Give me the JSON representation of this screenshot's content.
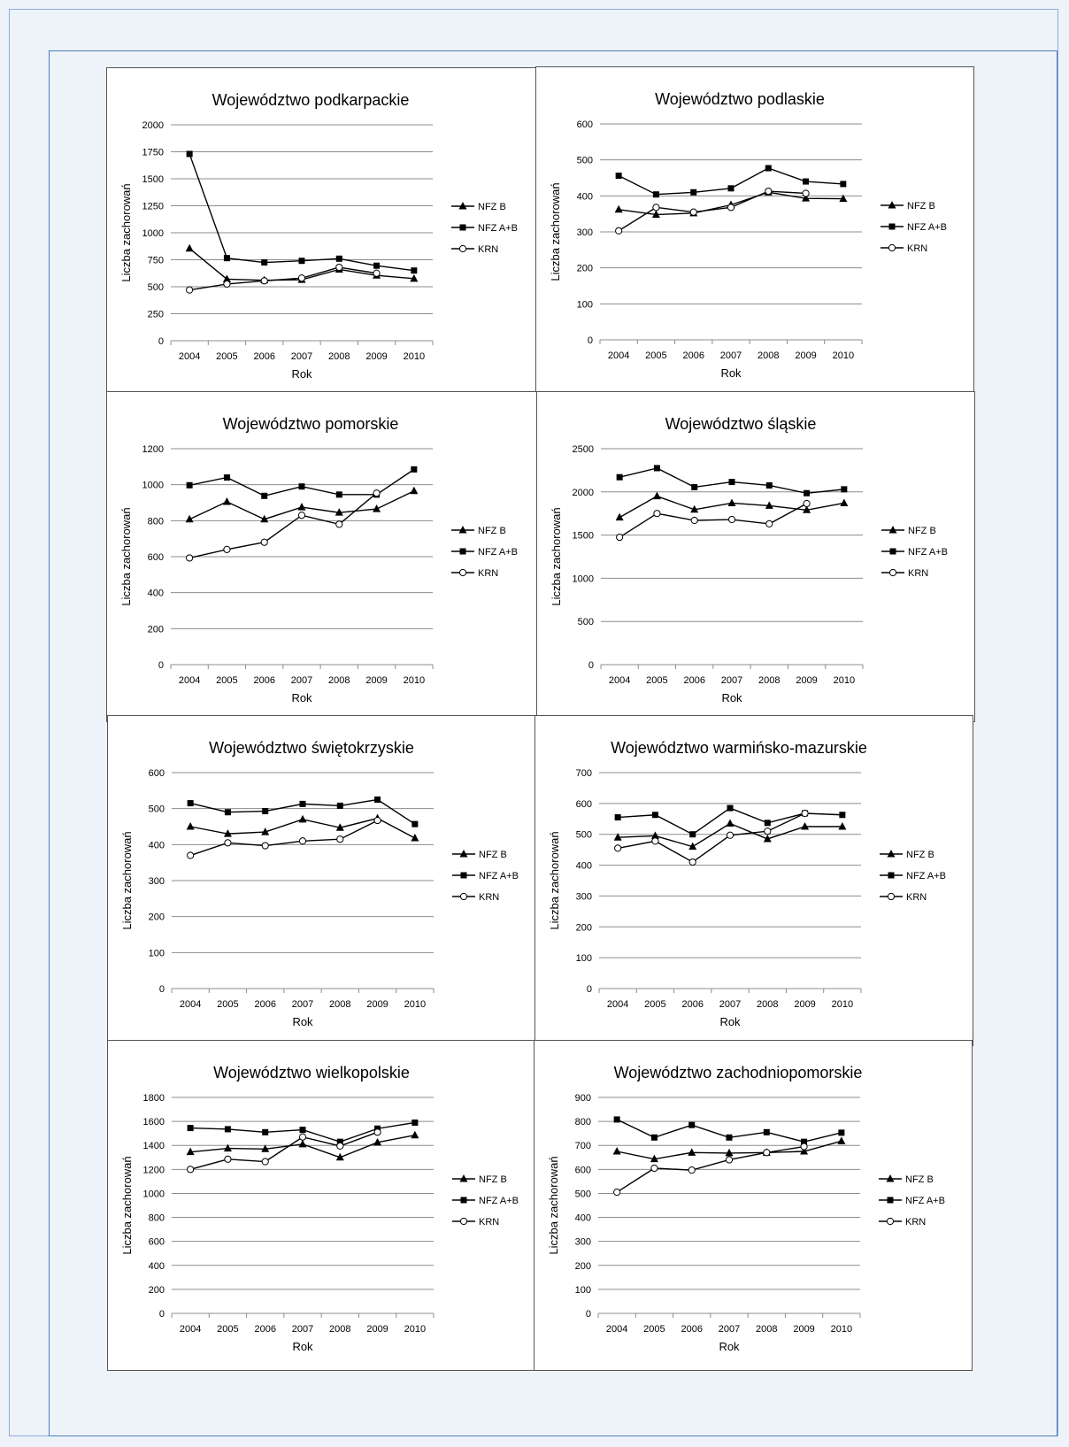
{
  "chart_data": [
    {
      "type": "line",
      "title": "Województwo podkarpackie",
      "xlabel": "Rok",
      "ylabel": "Liczba zachorowań",
      "categories": [
        "2004",
        "2005",
        "2006",
        "2007",
        "2008",
        "2009",
        "2010"
      ],
      "ylim": [
        0,
        2000
      ],
      "yticks": [
        "0",
        "250",
        "500",
        "750",
        "1000",
        "1250",
        "1500",
        "1750",
        "2000"
      ],
      "grid": true,
      "legend": "right",
      "series": [
        {
          "name": "NFZ B",
          "marker": "triangle",
          "values": [
            855,
            570,
            560,
            565,
            660,
            605,
            575
          ]
        },
        {
          "name": "NFZ A+B",
          "marker": "square",
          "values": [
            1730,
            765,
            725,
            740,
            760,
            695,
            650
          ]
        },
        {
          "name": "KRN",
          "marker": "circle",
          "values": [
            470,
            525,
            555,
            580,
            680,
            625,
            null
          ]
        }
      ]
    },
    {
      "type": "line",
      "title": "Województwo podlaskie",
      "xlabel": "Rok",
      "ylabel": "Liczba zachorowań",
      "categories": [
        "2004",
        "2005",
        "2006",
        "2007",
        "2008",
        "2009",
        "2010"
      ],
      "ylim": [
        0,
        600
      ],
      "yticks": [
        "0",
        "100",
        "200",
        "300",
        "400",
        "500",
        "600"
      ],
      "grid": true,
      "legend": "right",
      "series": [
        {
          "name": "NFZ B",
          "marker": "triangle",
          "values": [
            362,
            348,
            352,
            375,
            410,
            393,
            392
          ]
        },
        {
          "name": "NFZ A+B",
          "marker": "square",
          "values": [
            456,
            404,
            410,
            421,
            477,
            440,
            433
          ]
        },
        {
          "name": "KRN",
          "marker": "circle",
          "values": [
            303,
            368,
            355,
            368,
            413,
            407,
            null
          ]
        }
      ]
    },
    {
      "type": "line",
      "title": "Województwo pomorskie",
      "xlabel": "Rok",
      "ylabel": "Liczba zachorowań",
      "categories": [
        "2004",
        "2005",
        "2006",
        "2007",
        "2008",
        "2009",
        "2010"
      ],
      "ylim": [
        0,
        1200
      ],
      "yticks": [
        "0",
        "200",
        "400",
        "600",
        "800",
        "1000",
        "1200"
      ],
      "grid": true,
      "legend": "right",
      "series": [
        {
          "name": "NFZ B",
          "marker": "triangle",
          "values": [
            808,
            905,
            808,
            875,
            845,
            865,
            965
          ]
        },
        {
          "name": "NFZ A+B",
          "marker": "square",
          "values": [
            997,
            1040,
            938,
            990,
            945,
            945,
            1085
          ]
        },
        {
          "name": "KRN",
          "marker": "circle",
          "values": [
            593,
            640,
            680,
            830,
            780,
            953,
            null
          ]
        }
      ]
    },
    {
      "type": "line",
      "title": "Województwo śląskie",
      "xlabel": "Rok",
      "ylabel": "Liczba zachorowań",
      "categories": [
        "2004",
        "2005",
        "2006",
        "2007",
        "2008",
        "2009",
        "2010"
      ],
      "ylim": [
        0,
        2500
      ],
      "yticks": [
        "0",
        "500",
        "1000",
        "1500",
        "2000",
        "2500"
      ],
      "grid": true,
      "legend": "right",
      "series": [
        {
          "name": "NFZ B",
          "marker": "triangle",
          "values": [
            1705,
            1950,
            1795,
            1870,
            1840,
            1790,
            1870
          ]
        },
        {
          "name": "NFZ A+B",
          "marker": "square",
          "values": [
            2170,
            2275,
            2055,
            2115,
            2075,
            1985,
            2030
          ]
        },
        {
          "name": "KRN",
          "marker": "circle",
          "values": [
            1475,
            1750,
            1670,
            1680,
            1630,
            1865,
            null
          ]
        }
      ]
    },
    {
      "type": "line",
      "title": "Województwo świętokrzyskie",
      "xlabel": "Rok",
      "ylabel": "Liczba zachorowań",
      "categories": [
        "2004",
        "2005",
        "2006",
        "2007",
        "2008",
        "2009",
        "2010"
      ],
      "ylim": [
        0,
        600
      ],
      "yticks": [
        "0",
        "100",
        "200",
        "300",
        "400",
        "500",
        "600"
      ],
      "grid": true,
      "legend": "right",
      "series": [
        {
          "name": "NFZ B",
          "marker": "triangle",
          "values": [
            450,
            430,
            435,
            470,
            447,
            473,
            418
          ]
        },
        {
          "name": "NFZ A+B",
          "marker": "square",
          "values": [
            515,
            490,
            493,
            513,
            508,
            525,
            457
          ]
        },
        {
          "name": "KRN",
          "marker": "circle",
          "values": [
            370,
            405,
            397,
            410,
            415,
            467,
            null
          ]
        }
      ]
    },
    {
      "type": "line",
      "title": "Województwo warmińsko-mazurskie",
      "xlabel": "Rok",
      "ylabel": "Liczba zachorowań",
      "categories": [
        "2004",
        "2005",
        "2006",
        "2007",
        "2008",
        "2009",
        "2010"
      ],
      "ylim": [
        0,
        700
      ],
      "yticks": [
        "0",
        "100",
        "200",
        "300",
        "400",
        "500",
        "600",
        "700"
      ],
      "grid": true,
      "legend": "right",
      "series": [
        {
          "name": "NFZ B",
          "marker": "triangle",
          "values": [
            490,
            495,
            460,
            535,
            485,
            525,
            525
          ]
        },
        {
          "name": "NFZ A+B",
          "marker": "square",
          "values": [
            555,
            563,
            500,
            585,
            537,
            568,
            563
          ]
        },
        {
          "name": "KRN",
          "marker": "circle",
          "values": [
            455,
            478,
            410,
            497,
            510,
            568,
            null
          ]
        }
      ]
    },
    {
      "type": "line",
      "title": "Województwo wielkopolskie",
      "xlabel": "Rok",
      "ylabel": "Liczba zachorowań",
      "categories": [
        "2004",
        "2005",
        "2006",
        "2007",
        "2008",
        "2009",
        "2010"
      ],
      "ylim": [
        0,
        1800
      ],
      "yticks": [
        "0",
        "200",
        "400",
        "600",
        "800",
        "1000",
        "1200",
        "1400",
        "1600",
        "1800"
      ],
      "grid": true,
      "legend": "right",
      "series": [
        {
          "name": "NFZ B",
          "marker": "triangle",
          "values": [
            1345,
            1375,
            1370,
            1410,
            1300,
            1425,
            1485
          ]
        },
        {
          "name": "NFZ A+B",
          "marker": "square",
          "values": [
            1545,
            1535,
            1510,
            1530,
            1430,
            1540,
            1590
          ]
        },
        {
          "name": "KRN",
          "marker": "circle",
          "values": [
            1200,
            1285,
            1265,
            1470,
            1395,
            1510,
            null
          ]
        }
      ]
    },
    {
      "type": "line",
      "title": "Województwo zachodniopomorskie",
      "xlabel": "Rok",
      "ylabel": "Liczba zachorowań",
      "categories": [
        "2004",
        "2005",
        "2006",
        "2007",
        "2008",
        "2009",
        "2010"
      ],
      "ylim": [
        0,
        900
      ],
      "yticks": [
        "0",
        "100",
        "200",
        "300",
        "400",
        "500",
        "600",
        "700",
        "800",
        "900"
      ],
      "grid": true,
      "legend": "right",
      "series": [
        {
          "name": "NFZ B",
          "marker": "triangle",
          "values": [
            675,
            643,
            670,
            668,
            670,
            675,
            718
          ]
        },
        {
          "name": "NFZ A+B",
          "marker": "square",
          "values": [
            808,
            733,
            785,
            733,
            755,
            715,
            753
          ]
        },
        {
          "name": "KRN",
          "marker": "circle",
          "values": [
            505,
            605,
            597,
            640,
            670,
            695,
            null
          ]
        }
      ]
    }
  ]
}
